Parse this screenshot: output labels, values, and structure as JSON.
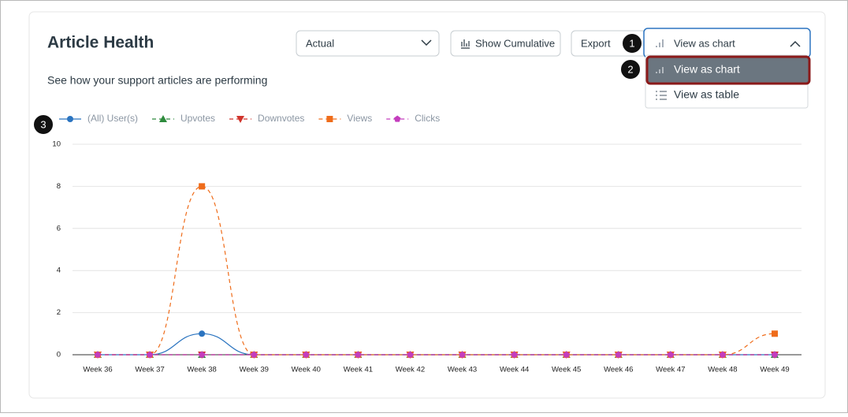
{
  "header": {
    "title": "Article Health",
    "subtitle": "See how your support articles are performing"
  },
  "controls": {
    "select": "Actual",
    "cumulative": "Show Cumulative",
    "export": "Export",
    "view": "View as chart"
  },
  "menu": {
    "items": [
      "View as chart",
      "View as table"
    ]
  },
  "callouts": [
    "1",
    "2",
    "3"
  ],
  "chart_data": {
    "type": "line",
    "categories": [
      "Week 36",
      "Week 37",
      "Week 38",
      "Week 39",
      "Week 40",
      "Week 41",
      "Week 42",
      "Week 43",
      "Week 44",
      "Week 45",
      "Week 46",
      "Week 47",
      "Week 48",
      "Week 49"
    ],
    "ylim": [
      0,
      10
    ],
    "yticks": [
      0,
      2,
      4,
      6,
      8,
      10
    ],
    "grid": true,
    "series": [
      {
        "name": "(All) User(s)",
        "color": "#2b74c0",
        "marker": "circle",
        "dash": "solid",
        "values": [
          0,
          0,
          1,
          0,
          0,
          0,
          0,
          0,
          0,
          0,
          0,
          0,
          0,
          0
        ]
      },
      {
        "name": "Upvotes",
        "color": "#2e8b3d",
        "marker": "triangle",
        "dash": "dashed",
        "values": [
          0,
          0,
          0,
          0,
          0,
          0,
          0,
          0,
          0,
          0,
          0,
          0,
          0,
          0
        ]
      },
      {
        "name": "Downvotes",
        "color": "#d0342c",
        "marker": "triangle-down",
        "dash": "dashed",
        "values": [
          0,
          0,
          0,
          0,
          0,
          0,
          0,
          0,
          0,
          0,
          0,
          0,
          0,
          0
        ]
      },
      {
        "name": "Views",
        "color": "#ef6c1a",
        "marker": "square",
        "dash": "dashed",
        "values": [
          0,
          0,
          8,
          0,
          0,
          0,
          0,
          0,
          0,
          0,
          0,
          0,
          0,
          1
        ]
      },
      {
        "name": "Clicks",
        "color": "#c43dbd",
        "marker": "pentagon",
        "dash": "dashed",
        "values": [
          0,
          0,
          0,
          0,
          0,
          0,
          0,
          0,
          0,
          0,
          0,
          0,
          0,
          0
        ]
      }
    ]
  }
}
